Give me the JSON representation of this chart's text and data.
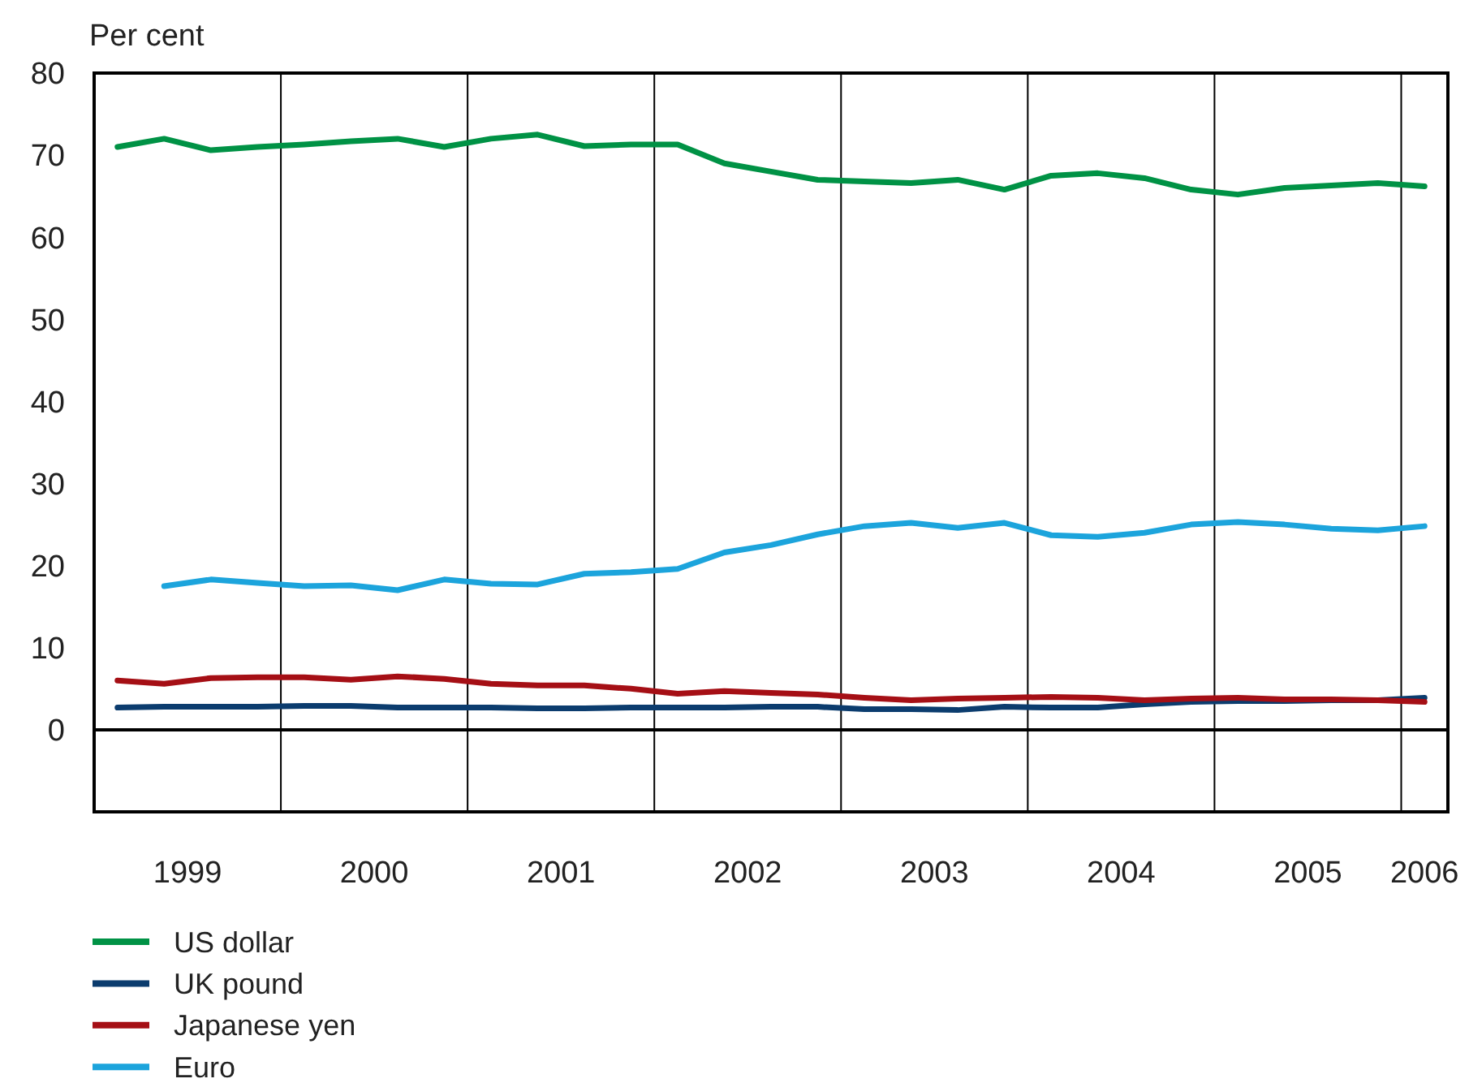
{
  "chart_data": {
    "type": "line",
    "ylabel": "Per cent",
    "xlim": [
      1999,
      2006.25
    ],
    "xticks": [
      {
        "value": 1999.5,
        "label": "1999"
      },
      {
        "value": 2000.5,
        "label": "2000"
      },
      {
        "value": 2001.5,
        "label": "2001"
      },
      {
        "value": 2002.5,
        "label": "2002"
      },
      {
        "value": 2003.5,
        "label": "2003"
      },
      {
        "value": 2004.5,
        "label": "2004"
      },
      {
        "value": 2005.5,
        "label": "2005"
      },
      {
        "value": 2006.125,
        "label": "2006"
      }
    ],
    "ylim": [
      -10,
      80
    ],
    "yticks": [
      0,
      10,
      20,
      30,
      40,
      50,
      60,
      70,
      80
    ],
    "x": [
      1999.125,
      1999.375,
      1999.625,
      1999.875,
      2000.125,
      2000.375,
      2000.625,
      2000.875,
      2001.125,
      2001.375,
      2001.625,
      2001.875,
      2002.125,
      2002.375,
      2002.625,
      2002.875,
      2003.125,
      2003.375,
      2003.625,
      2003.875,
      2004.125,
      2004.375,
      2004.625,
      2004.875,
      2005.125,
      2005.375,
      2005.625,
      2005.875,
      2006.125
    ],
    "series": [
      {
        "name": "US dollar",
        "color": "#009245",
        "values": [
          71,
          72,
          70.6,
          71,
          71.3,
          71.7,
          72,
          71,
          72,
          72.5,
          71.1,
          71.3,
          71.3,
          69,
          68,
          67,
          66.8,
          66.6,
          67,
          65.8,
          67.5,
          67.8,
          67.2,
          65.8,
          65.2,
          66,
          66.3,
          66.6,
          66.2
        ]
      },
      {
        "name": "UK pound",
        "color": "#0b3c6e",
        "values": [
          2.7,
          2.8,
          2.8,
          2.8,
          2.9,
          2.9,
          2.7,
          2.7,
          2.7,
          2.6,
          2.6,
          2.7,
          2.7,
          2.7,
          2.8,
          2.8,
          2.5,
          2.5,
          2.4,
          2.8,
          2.7,
          2.7,
          3.1,
          3.4,
          3.5,
          3.5,
          3.6,
          3.6,
          3.9
        ]
      },
      {
        "name": "Japanese yen",
        "color": "#a50f15",
        "values": [
          6,
          5.6,
          6.3,
          6.4,
          6.4,
          6.1,
          6.5,
          6.2,
          5.6,
          5.4,
          5.4,
          5,
          4.4,
          4.7,
          4.5,
          4.3,
          3.9,
          3.6,
          3.8,
          3.9,
          4,
          3.9,
          3.6,
          3.8,
          3.9,
          3.7,
          3.7,
          3.6,
          3.4
        ]
      },
      {
        "name": "Euro",
        "color": "#1ca4dc",
        "values": [
          null,
          17.5,
          18.3,
          17.9,
          17.5,
          17.6,
          17,
          18.3,
          17.8,
          17.7,
          19,
          19.2,
          19.6,
          21.6,
          22.5,
          23.8,
          24.8,
          25.2,
          24.6,
          25.2,
          23.7,
          23.5,
          24,
          25,
          25.3,
          25,
          24.5,
          24.3,
          24.8
        ]
      }
    ],
    "ref_lines": [
      {
        "axis": "x",
        "value": 2000
      },
      {
        "axis": "x",
        "value": 2001
      },
      {
        "axis": "x",
        "value": 2002
      },
      {
        "axis": "x",
        "value": 2003
      },
      {
        "axis": "x",
        "value": 2004
      },
      {
        "axis": "x",
        "value": 2005
      },
      {
        "axis": "x",
        "value": 2006
      },
      {
        "axis": "y",
        "value": 0
      }
    ],
    "legend": "bottom",
    "marker": "none",
    "line_style": "solid"
  }
}
